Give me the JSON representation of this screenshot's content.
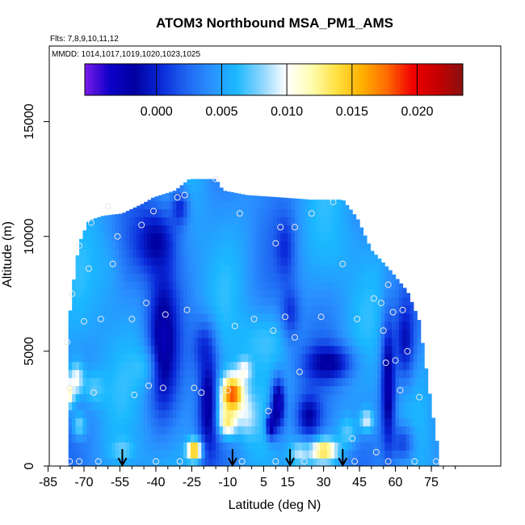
{
  "chart_data": {
    "type": "heatmap",
    "title": "ATOM3 Northbound MSA_PM1_AMS",
    "flights_label": "Flts: 7,8,9,10,11,12",
    "dates_label": "MMDD: 1014,1017,1019,1020,1023,1025",
    "xlabel": "Latitude (deg N)",
    "ylabel": "Altitude (m)",
    "xlim": [
      -85,
      85
    ],
    "ylim": [
      0,
      18000
    ],
    "x_ticks": [
      "-85",
      "-70",
      "-55",
      "-40",
      "-25",
      "-10",
      "5",
      "15",
      "30",
      "45",
      "60",
      "75"
    ],
    "x_tick_values": [
      -85,
      -70,
      -55,
      -40,
      -25,
      -10,
      5,
      15,
      30,
      45,
      60,
      75
    ],
    "y_ticks": [
      "0",
      "5000",
      "10000",
      "15000"
    ],
    "y_tick_values": [
      0,
      5000,
      10000,
      15000
    ],
    "colorbar": {
      "min": -0.0055,
      "max": 0.0235,
      "ticks": [
        "0.000",
        "0.005",
        "0.010",
        "0.015",
        "0.020"
      ],
      "tick_values": [
        0.0,
        0.005,
        0.01,
        0.015,
        0.02
      ],
      "colors": [
        "#7a1be8",
        "#0c00c8",
        "#0000a0",
        "#0a28d8",
        "#1e64f0",
        "#2a90ff",
        "#1ab8ff",
        "#8ad4ff",
        "#ffffff",
        "#fffcb0",
        "#ffe040",
        "#ffb000",
        "#ff6a00",
        "#f00000",
        "#c40000",
        "#8a1010"
      ]
    },
    "envelope": [
      {
        "lat": -77,
        "top": 5400
      },
      {
        "lat": -75,
        "top": 7600
      },
      {
        "lat": -72,
        "top": 9700
      },
      {
        "lat": -68,
        "top": 10700
      },
      {
        "lat": -62,
        "top": 10900
      },
      {
        "lat": -54,
        "top": 11000
      },
      {
        "lat": -46,
        "top": 11400
      },
      {
        "lat": -41,
        "top": 11700
      },
      {
        "lat": -32,
        "top": 12000
      },
      {
        "lat": -26,
        "top": 12500
      },
      {
        "lat": -15,
        "top": 12500
      },
      {
        "lat": -12,
        "top": 12000
      },
      {
        "lat": -2,
        "top": 11800
      },
      {
        "lat": 12,
        "top": 11700
      },
      {
        "lat": 25,
        "top": 11600
      },
      {
        "lat": 38,
        "top": 11600
      },
      {
        "lat": 44,
        "top": 10800
      },
      {
        "lat": 50,
        "top": 9400
      },
      {
        "lat": 58,
        "top": 8500
      },
      {
        "lat": 65,
        "top": 7600
      },
      {
        "lat": 70,
        "top": 6300
      },
      {
        "lat": 72,
        "top": 4800
      },
      {
        "lat": 75,
        "top": 2600
      },
      {
        "lat": 78,
        "top": 600
      }
    ],
    "background_value": 0.0045,
    "features": [
      {
        "lat": -37,
        "alt": 5500,
        "slat": 6,
        "salt": 3200,
        "value": -0.0035,
        "w": 0.9
      },
      {
        "lat": -40,
        "alt": 9800,
        "slat": 9,
        "salt": 1500,
        "value": -0.003,
        "w": 0.8
      },
      {
        "lat": -30,
        "alt": 11300,
        "slat": 4,
        "salt": 900,
        "value": -0.002,
        "w": 0.7
      },
      {
        "lat": -18,
        "alt": 2800,
        "slat": 4,
        "salt": 2200,
        "value": -0.004,
        "w": 0.85
      },
      {
        "lat": -20,
        "alt": 5200,
        "slat": 5,
        "salt": 1200,
        "value": -0.002,
        "w": 0.6
      },
      {
        "lat": -8,
        "alt": 3100,
        "slat": 5,
        "salt": 900,
        "value": 0.019,
        "w": 1.0
      },
      {
        "lat": -10,
        "alt": 2000,
        "slat": 4,
        "salt": 700,
        "value": 0.014,
        "w": 0.9
      },
      {
        "lat": -3,
        "alt": 4200,
        "slat": 3,
        "salt": 500,
        "value": 0.013,
        "w": 0.7
      },
      {
        "lat": -2,
        "alt": 2200,
        "slat": 4,
        "salt": 900,
        "value": 0.0115,
        "w": 0.6
      },
      {
        "lat": -77,
        "alt": 3200,
        "slat": 3,
        "salt": 700,
        "value": 0.014,
        "w": 0.9
      },
      {
        "lat": -73,
        "alt": 3800,
        "slat": 3,
        "salt": 700,
        "value": 0.012,
        "w": 0.8
      },
      {
        "lat": -72,
        "alt": 1800,
        "slat": 3,
        "salt": 600,
        "value": 0.011,
        "w": 0.6
      },
      {
        "lat": -66,
        "alt": 3400,
        "slat": 5,
        "salt": 800,
        "value": 0.009,
        "w": 0.6
      },
      {
        "lat": -24,
        "alt": 700,
        "slat": 3,
        "salt": 450,
        "value": 0.0165,
        "w": 1.0
      },
      {
        "lat": -54,
        "alt": 700,
        "slat": 5,
        "salt": 500,
        "value": 0.009,
        "w": 0.6
      },
      {
        "lat": 30,
        "alt": 700,
        "slat": 6,
        "salt": 500,
        "value": 0.0145,
        "w": 1.0
      },
      {
        "lat": 20,
        "alt": 600,
        "slat": 4,
        "salt": 500,
        "value": 0.011,
        "w": 0.7
      },
      {
        "lat": 40,
        "alt": 1500,
        "slat": 4,
        "salt": 700,
        "value": 0.0095,
        "w": 0.6
      },
      {
        "lat": 48,
        "alt": 2000,
        "slat": 3,
        "salt": 500,
        "value": 0.012,
        "w": 0.7
      },
      {
        "lat": 32,
        "alt": 4500,
        "slat": 10,
        "salt": 800,
        "value": -0.003,
        "w": 0.85
      },
      {
        "lat": 24,
        "alt": 2200,
        "slat": 5,
        "salt": 900,
        "value": -0.003,
        "w": 0.8
      },
      {
        "lat": 11,
        "alt": 2700,
        "slat": 3,
        "salt": 1200,
        "value": -0.0045,
        "w": 0.9
      },
      {
        "lat": 8,
        "alt": 1800,
        "slat": 2,
        "salt": 600,
        "value": -0.005,
        "w": 0.8
      },
      {
        "lat": 16,
        "alt": 6500,
        "slat": 4,
        "salt": 1300,
        "value": -0.002,
        "w": 0.7
      },
      {
        "lat": 14,
        "alt": 9500,
        "slat": 4,
        "salt": 1400,
        "value": -0.0015,
        "w": 0.6
      },
      {
        "lat": 57,
        "alt": 3500,
        "slat": 3,
        "salt": 3000,
        "value": -0.004,
        "w": 0.85
      },
      {
        "lat": 64,
        "alt": 5500,
        "slat": 4,
        "salt": 1800,
        "value": -0.003,
        "w": 0.7
      },
      {
        "lat": 63,
        "alt": 1000,
        "slat": 5,
        "salt": 900,
        "value": -0.002,
        "w": 0.6
      },
      {
        "lat": 5,
        "alt": 5500,
        "slat": 12,
        "salt": 1200,
        "value": 0.0085,
        "w": 0.5
      },
      {
        "lat": -45,
        "alt": 4300,
        "slat": 5,
        "salt": 1000,
        "value": 0.0085,
        "w": 0.5
      },
      {
        "lat": -60,
        "alt": 8600,
        "slat": 6,
        "salt": 1600,
        "value": 0.007,
        "w": 0.4
      },
      {
        "lat": 35,
        "alt": 9500,
        "slat": 8,
        "salt": 1500,
        "value": 0.0068,
        "w": 0.4
      }
    ],
    "samples": [
      {
        "lat": -77,
        "alt": 5400
      },
      {
        "lat": -76,
        "alt": 3400
      },
      {
        "lat": -75,
        "alt": 7500
      },
      {
        "lat": -72,
        "alt": 9600
      },
      {
        "lat": -70,
        "alt": 6300
      },
      {
        "lat": -68,
        "alt": 8600
      },
      {
        "lat": -67,
        "alt": 10600
      },
      {
        "lat": -66,
        "alt": 3200
      },
      {
        "lat": -63,
        "alt": 6400
      },
      {
        "lat": -60,
        "alt": 11300
      },
      {
        "lat": -58,
        "alt": 8800
      },
      {
        "lat": -56,
        "alt": 10000
      },
      {
        "lat": -50,
        "alt": 6400
      },
      {
        "lat": -49,
        "alt": 3100
      },
      {
        "lat": -46,
        "alt": 10500
      },
      {
        "lat": -44,
        "alt": 7100
      },
      {
        "lat": -43,
        "alt": 3500
      },
      {
        "lat": -41,
        "alt": 11100
      },
      {
        "lat": -37,
        "alt": 3400
      },
      {
        "lat": -36,
        "alt": 6600
      },
      {
        "lat": -31,
        "alt": 11700
      },
      {
        "lat": -28,
        "alt": 11800
      },
      {
        "lat": -27,
        "alt": 6800
      },
      {
        "lat": -24,
        "alt": 3400
      },
      {
        "lat": -21,
        "alt": 3200
      },
      {
        "lat": -15,
        "alt": 12500
      },
      {
        "lat": -10,
        "alt": 3300
      },
      {
        "lat": -7,
        "alt": 6100
      },
      {
        "lat": -5,
        "alt": 11000
      },
      {
        "lat": 1,
        "alt": 6400
      },
      {
        "lat": 7,
        "alt": 2400
      },
      {
        "lat": 9,
        "alt": 5900
      },
      {
        "lat": 10,
        "alt": 9700
      },
      {
        "lat": 12,
        "alt": 10400
      },
      {
        "lat": 14,
        "alt": 6500
      },
      {
        "lat": 18,
        "alt": 10400
      },
      {
        "lat": 18,
        "alt": 5600
      },
      {
        "lat": 20,
        "alt": 4100
      },
      {
        "lat": 25,
        "alt": 11000
      },
      {
        "lat": 29,
        "alt": 6500
      },
      {
        "lat": 34,
        "alt": 11500
      },
      {
        "lat": 38,
        "alt": 8800
      },
      {
        "lat": 42,
        "alt": 1200
      },
      {
        "lat": 44,
        "alt": 6400
      },
      {
        "lat": 51,
        "alt": 7300
      },
      {
        "lat": 54,
        "alt": 7100
      },
      {
        "lat": 55,
        "alt": 5900
      },
      {
        "lat": 56,
        "alt": 4500
      },
      {
        "lat": 57,
        "alt": 7900
      },
      {
        "lat": 59,
        "alt": 6700
      },
      {
        "lat": 60,
        "alt": 4600
      },
      {
        "lat": 62,
        "alt": 3300
      },
      {
        "lat": 63,
        "alt": 6800
      },
      {
        "lat": 65,
        "alt": 5000
      },
      {
        "lat": 70,
        "alt": 3000
      },
      {
        "lat": -76,
        "alt": 200
      },
      {
        "lat": -72,
        "alt": 200
      },
      {
        "lat": -64,
        "alt": 200
      },
      {
        "lat": -40,
        "alt": 200
      },
      {
        "lat": -30,
        "alt": 200
      },
      {
        "lat": -4,
        "alt": 200
      },
      {
        "lat": 10,
        "alt": 200
      },
      {
        "lat": 22,
        "alt": 200
      },
      {
        "lat": 43,
        "alt": 200
      },
      {
        "lat": 52,
        "alt": 600
      },
      {
        "lat": 57,
        "alt": 200
      },
      {
        "lat": 68,
        "alt": 200
      },
      {
        "lat": 77,
        "alt": 200
      }
    ],
    "arrows": [
      -54,
      -8,
      16,
      38
    ]
  }
}
